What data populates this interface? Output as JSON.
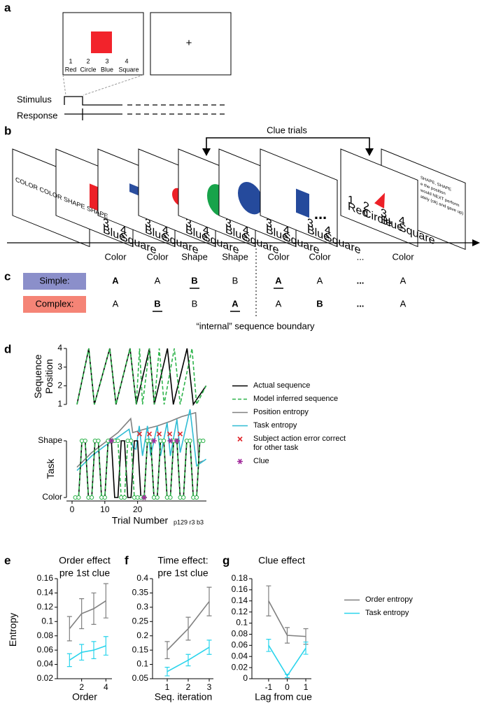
{
  "panel_labels": [
    "a",
    "b",
    "c",
    "d",
    "e",
    "f",
    "g"
  ],
  "panel_a": {
    "cells": [
      {
        "number": "1",
        "name": "Red"
      },
      {
        "number": "2",
        "name": "Circle"
      },
      {
        "number": "3",
        "name": "Blue"
      },
      {
        "number": "4",
        "name": "Square"
      }
    ],
    "fixation": "+",
    "rows": [
      "Stimulus",
      "Response"
    ]
  },
  "panel_b": {
    "clue_label": "Clue trials",
    "first_card": "COLOR COLOR SHAPE SHAPE",
    "ellipsis": "...",
    "instructions": [
      "SHAPE, SHAPE",
      "e the position",
      "would NEXT perform",
      "ately (ok) and gave up)"
    ],
    "tasks": [
      "Color",
      "Color",
      "Shape",
      "Shape",
      "Color",
      "Color",
      "...",
      "Color"
    ]
  },
  "panel_c": {
    "rows": [
      {
        "label": "Simple:",
        "color": "#8b8fca",
        "responses": [
          {
            "text": "A",
            "bold": true
          },
          {
            "text": "A"
          },
          {
            "text": "B",
            "bold": true,
            "underline": true
          },
          {
            "text": "B"
          },
          {
            "text": "A",
            "bold": true,
            "underline": true
          },
          {
            "text": "A"
          },
          {
            "text": "...",
            "bold": true
          },
          {
            "text": "A"
          }
        ]
      },
      {
        "label": "Complex:",
        "color": "#f58476",
        "responses": [
          {
            "text": "A"
          },
          {
            "text": "B",
            "bold": true,
            "underline": true
          },
          {
            "text": "B"
          },
          {
            "text": "A",
            "bold": true,
            "underline": true
          },
          {
            "text": "A"
          },
          {
            "text": "B",
            "bold": true
          },
          {
            "text": "...",
            "bold": true
          },
          {
            "text": "A"
          }
        ]
      }
    ],
    "boundary": "“internal” sequence boundary"
  },
  "chart_data": [
    {
      "type": "line",
      "ylabel": "Sequence Position",
      "xlim": [
        0,
        41
      ],
      "ylim": [
        1,
        4
      ],
      "yticks": [
        1,
        2,
        3,
        4
      ],
      "series": [
        {
          "name": "Actual sequence",
          "color": "#000000",
          "x": [
            1.5,
            5.1,
            6.8,
            11.5,
            13.4,
            17.7,
            19.6,
            23.6,
            25.1,
            29.1,
            30.9,
            35.1,
            37,
            40.9
          ],
          "values": [
            1,
            4,
            1,
            4,
            1,
            4,
            1,
            4,
            1,
            4,
            1,
            4,
            1,
            2
          ]
        },
        {
          "name": "Model inferred sequence",
          "color": "#2db34a",
          "dashed": true,
          "x": [
            1.5,
            5.1,
            6.8,
            11.5,
            13.4,
            17.7,
            19.6,
            20.6,
            21.5,
            23.6,
            25.1,
            26.6,
            28.1,
            31.2,
            33,
            36.6,
            38,
            40.9
          ],
          "values": [
            1,
            4,
            1,
            4,
            1,
            4,
            1,
            4,
            1,
            4,
            1,
            4,
            1,
            4,
            1,
            4,
            1,
            2
          ]
        }
      ]
    },
    {
      "type": "line",
      "xlim": [
        0,
        41
      ],
      "ylim": [
        0,
        1
      ],
      "series": [
        {
          "name": "Position entropy",
          "color": "#808080",
          "x": [
            1.5,
            6,
            10,
            14,
            17.9,
            18.5,
            22,
            26,
            30,
            33.4,
            37.7,
            38.7,
            40.4
          ],
          "values": [
            0.13,
            0.35,
            0.5,
            0.65,
            0.86,
            0.65,
            0.7,
            0.75,
            0.82,
            0.89,
            0.95,
            0.2,
            0.23
          ]
        },
        {
          "name": "Task entropy",
          "color": "#30bcd4",
          "x": [
            1.5,
            6,
            10,
            14,
            17.4,
            18.6,
            19.5,
            20.5,
            21.5,
            23,
            24,
            26,
            27,
            29,
            30,
            32,
            33,
            36,
            38,
            40.9
          ],
          "values": [
            0.08,
            0.3,
            0.45,
            0.58,
            0.7,
            0.42,
            0.4,
            0.75,
            0.3,
            0.75,
            0.3,
            0.75,
            0.3,
            0.8,
            0.3,
            0.85,
            0.35,
            1.0,
            0.15,
            0.25
          ]
        },
        {
          "name": "Subject action error correct for other task",
          "color": "#e0282c",
          "marker": "x",
          "line": false,
          "x": [
            20.6,
            23.6,
            26.6,
            29.8,
            33
          ],
          "values": [
            0.63,
            0.63,
            0.63,
            0.63,
            0.63
          ]
        }
      ]
    },
    {
      "type": "line",
      "ylabel": "Task",
      "xlabel": "Trial Number",
      "note": "p129 r3 b3",
      "xlim": [
        0,
        41
      ],
      "ylim": [
        0,
        1
      ],
      "yticks": [
        {
          "value": 0,
          "label": "Color"
        },
        {
          "value": 1,
          "label": "Shape"
        }
      ],
      "xticks": [
        0,
        10,
        20
      ],
      "series": [
        {
          "color": "#000000",
          "x": [
            1,
            2,
            3,
            4,
            5,
            6,
            7,
            8,
            9,
            10,
            11,
            12,
            13,
            14,
            15,
            16,
            17,
            18,
            19,
            20,
            21,
            22,
            23,
            24,
            25,
            26,
            27,
            28,
            29,
            30,
            31,
            32,
            33,
            34,
            35,
            36,
            37,
            38,
            39,
            40
          ],
          "values": [
            0,
            0,
            1,
            1,
            0,
            0,
            1,
            1,
            0,
            0,
            1,
            1,
            0,
            0,
            1,
            1,
            0,
            0,
            1,
            1,
            0,
            0,
            1,
            1,
            0,
            0,
            1,
            1,
            0,
            0,
            1,
            1,
            0,
            0,
            1,
            1,
            0,
            0,
            1,
            1
          ]
        },
        {
          "color": "#2db34a",
          "dashed": true,
          "marker": "circle",
          "x": [
            1,
            2,
            3,
            4,
            5,
            6,
            7,
            8,
            9,
            10,
            11,
            12,
            13,
            14,
            15,
            16,
            17,
            18,
            19,
            20,
            21,
            22,
            23,
            24,
            25,
            26,
            27,
            28,
            29,
            30,
            31,
            32,
            33,
            34,
            35,
            36,
            37,
            38,
            39,
            40
          ],
          "values": [
            0,
            0,
            1,
            1,
            0,
            0,
            1,
            1,
            0,
            0,
            1,
            1,
            1,
            1,
            0,
            0,
            1,
            1,
            0,
            0,
            0,
            0,
            1,
            1,
            0,
            0,
            1,
            1,
            0,
            0,
            1,
            1,
            0,
            0,
            1,
            1,
            0,
            0,
            1,
            1
          ]
        },
        {
          "name": "Clue",
          "color": "#a0289a",
          "marker": "asterisk",
          "line": false,
          "x": [
            12,
            22,
            25,
            30,
            32
          ],
          "values": [
            1,
            0,
            1,
            1,
            1
          ]
        }
      ]
    },
    {
      "type": "errorline",
      "title": "Order effect",
      "subtitle": "pre 1st clue",
      "ylabel": "Entropy",
      "xlabel": "Order",
      "x": [
        1,
        2,
        3,
        4
      ],
      "xlim": [
        0,
        4.5
      ],
      "xticks": [
        2,
        4
      ],
      "ylim": [
        0.02,
        0.16
      ],
      "yticks": [
        0.02,
        0.04,
        0.06,
        0.08,
        0.1,
        0.12,
        0.14,
        0.16
      ],
      "series": [
        {
          "color": "#808080",
          "values": [
            0.09,
            0.111,
            0.118,
            0.129
          ],
          "errors": [
            0.017,
            0.021,
            0.022,
            0.024
          ]
        },
        {
          "color": "#2ad4ec",
          "values": [
            0.046,
            0.057,
            0.06,
            0.066
          ],
          "errors": [
            0.009,
            0.011,
            0.012,
            0.013
          ]
        }
      ]
    },
    {
      "type": "errorline",
      "title": "Time effect:",
      "subtitle": "pre 1st clue",
      "xlabel": "Seq. iteration",
      "x": [
        1,
        2,
        3
      ],
      "xlim": [
        0.3,
        3.2
      ],
      "xticks": [
        1,
        2,
        3
      ],
      "ylim": [
        0.05,
        0.4
      ],
      "yticks": [
        0.05,
        0.1,
        0.15,
        0.2,
        0.25,
        0.3,
        0.35,
        0.4
      ],
      "series": [
        {
          "color": "#808080",
          "values": [
            0.15,
            0.225,
            0.32
          ],
          "errors": [
            0.03,
            0.04,
            0.05
          ]
        },
        {
          "color": "#2ad4ec",
          "values": [
            0.075,
            0.115,
            0.16
          ],
          "errors": [
            0.015,
            0.02,
            0.025
          ]
        }
      ]
    },
    {
      "type": "errorline",
      "title": "Clue effect",
      "xlabel": "Lag from cue",
      "x": [
        -1,
        0,
        1
      ],
      "xlim": [
        -1.9,
        1.3
      ],
      "xticks": [
        -1,
        0,
        1
      ],
      "ylim": [
        0,
        0.18
      ],
      "yticks": [
        0,
        0.02,
        0.04,
        0.06,
        0.08,
        0.1,
        0.12,
        0.14,
        0.16,
        0.18
      ],
      "series": [
        {
          "name": "Order entropy",
          "color": "#808080",
          "values": [
            0.14,
            0.078,
            0.076
          ],
          "errors": [
            0.027,
            0.014,
            0.014
          ]
        },
        {
          "name": "Task entropy",
          "color": "#2ad4ec",
          "values": [
            0.06,
            0.005,
            0.055
          ],
          "errors": [
            0.011,
            0.003,
            0.011
          ]
        }
      ]
    }
  ]
}
